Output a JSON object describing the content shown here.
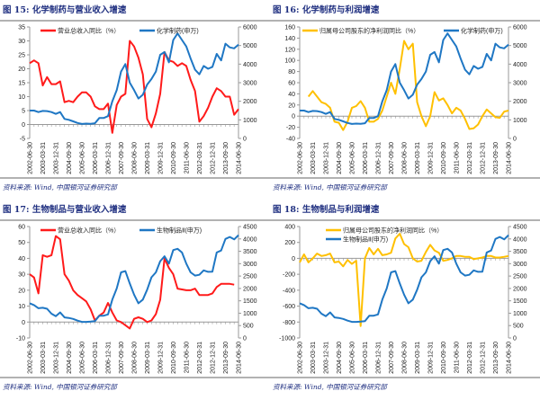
{
  "x_labels": [
    "2002-06-30",
    "2003-03-31",
    "2003-12-31",
    "2004-09-30",
    "2005-06-30",
    "2006-03-31",
    "2006-12-31",
    "2007-09-30",
    "2008-06-30",
    "2009-03-31",
    "2009-12-31",
    "2010-09-30",
    "2011-06-30",
    "2012-03-31",
    "2012-12-31",
    "2013-09-30",
    "2014-06-30"
  ],
  "colors": {
    "red": "#ff1a1a",
    "blue": "#1f77c4",
    "yellow": "#ffc000",
    "title": "#1f2f80"
  },
  "chart_data": [
    {
      "type": "line",
      "title": "图 15:  化学制药与营业收入增速",
      "source": "资料来源:  Wind,  中国银河证券研究部",
      "ylim": [
        -5,
        35
      ],
      "yticks": [
        -5,
        0,
        5,
        10,
        15,
        20,
        25,
        30,
        35
      ],
      "y2lim": [
        0,
        6000
      ],
      "y2ticks": [
        0,
        1000,
        2000,
        3000,
        4000,
        5000,
        6000
      ],
      "legend_layout": "row",
      "series": [
        {
          "name": "营业总收入同比（%）",
          "axis": "left",
          "color": "#ff1a1a",
          "values": [
            22,
            23,
            22,
            14,
            17,
            14.5,
            14.5,
            15.5,
            8,
            8.5,
            8,
            10,
            11.5,
            11.5,
            10,
            6.5,
            5.5,
            5.5,
            7.5,
            -3,
            7,
            10,
            11,
            30,
            28,
            24,
            18,
            2,
            -1,
            4,
            11,
            26,
            23,
            22.5,
            21,
            22,
            21,
            16,
            12,
            1,
            3,
            6,
            10,
            13,
            12,
            10,
            10,
            3.5,
            5.5
          ]
        },
        {
          "name": "化学制药(申万)",
          "axis": "right",
          "color": "#1f77c4",
          "values": [
            1500,
            1500,
            1420,
            1480,
            1470,
            1420,
            1320,
            1420,
            1050,
            1000,
            920,
            830,
            780,
            800,
            790,
            820,
            1100,
            1100,
            1200,
            2000,
            2600,
            3600,
            4000,
            3000,
            2600,
            2150,
            2350,
            2900,
            3200,
            3600,
            4500,
            4650,
            4100,
            5300,
            5650,
            5300,
            4950,
            4300,
            3700,
            3450,
            3900,
            3750,
            3850,
            4550,
            4200,
            5100,
            4900,
            4850,
            5050
          ]
        }
      ]
    },
    {
      "type": "line",
      "title": "图 16:  化学制药与利润增速",
      "source": "资料来源:  Wind,  中国银河证券研究部",
      "ylim": [
        -40,
        160
      ],
      "yticks": [
        -40,
        -20,
        0,
        20,
        40,
        60,
        80,
        100,
        120,
        140,
        160
      ],
      "y2lim": [
        0,
        6000
      ],
      "y2ticks": [
        0,
        1000,
        2000,
        3000,
        4000,
        5000,
        6000
      ],
      "legend_layout": "row-wide",
      "series": [
        {
          "name": "归属母公司股东的净利润同比（%）",
          "axis": "left",
          "color": "#ffc000",
          "values": [
            null,
            null,
            35,
            45,
            35,
            25,
            22,
            15,
            -10,
            -12,
            -25,
            -10,
            15,
            18,
            27,
            15,
            -10,
            -10,
            -5,
            10,
            35,
            60,
            40,
            85,
            135,
            120,
            130,
            25,
            0,
            -18,
            0,
            43,
            28,
            32,
            20,
            5,
            15,
            10,
            -5,
            -23,
            -22,
            -15,
            0,
            12,
            5,
            -2,
            -3,
            8,
            10
          ]
        },
        {
          "name": "化学制药(申万)",
          "axis": "right",
          "color": "#1f77c4",
          "values": [
            1500,
            1500,
            1420,
            1480,
            1470,
            1420,
            1320,
            1420,
            1050,
            1000,
            920,
            830,
            780,
            800,
            790,
            820,
            1100,
            1100,
            1200,
            2000,
            2600,
            3600,
            4000,
            3000,
            2600,
            2150,
            2350,
            2900,
            3200,
            3600,
            4500,
            4650,
            4100,
            5300,
            5650,
            5300,
            4950,
            4300,
            3700,
            3450,
            3900,
            3750,
            3850,
            4550,
            4200,
            5100,
            4900,
            4850,
            5050
          ]
        }
      ]
    },
    {
      "type": "line",
      "title": "图 17:  生物制品与营业收入增速",
      "source": "资料来源:  Wind,  中国银河证券研究部",
      "ylim": [
        -10,
        60
      ],
      "yticks": [
        -10,
        0,
        10,
        20,
        30,
        40,
        50,
        60
      ],
      "y2lim": [
        0,
        4500
      ],
      "y2ticks": [
        0,
        500,
        1000,
        1500,
        2000,
        2500,
        3000,
        3500,
        4000,
        4500
      ],
      "legend_layout": "row",
      "series": [
        {
          "name": "营业总收入同比（%）",
          "axis": "left",
          "color": "#ff1a1a",
          "values": [
            30,
            28,
            18,
            42,
            41,
            42,
            54,
            52,
            30,
            26,
            20,
            17,
            15,
            13,
            8,
            1,
            4,
            6,
            12,
            6,
            1,
            0,
            -2,
            -4,
            2,
            3,
            2,
            0,
            1,
            5,
            14,
            40,
            34,
            30,
            21,
            20.5,
            20,
            20,
            21,
            17,
            17,
            17,
            18,
            22,
            24,
            24,
            24,
            23.5,
            null
          ]
        },
        {
          "name": "生物制品Ⅱ(申万)",
          "axis": "right",
          "color": "#1f77c4",
          "values": [
            1400,
            1330,
            1200,
            1220,
            1180,
            980,
            880,
            1030,
            830,
            810,
            770,
            700,
            650,
            650,
            660,
            680,
            900,
            900,
            950,
            1550,
            2000,
            2650,
            2700,
            2200,
            1750,
            1400,
            1550,
            1950,
            2450,
            2650,
            3100,
            3300,
            3000,
            3550,
            3600,
            3450,
            3000,
            2650,
            2520,
            2550,
            2730,
            2670,
            2680,
            3450,
            3530,
            4000,
            4080,
            3980,
            4150
          ]
        }
      ]
    },
    {
      "type": "line",
      "title": "图 18:  生物制品与利润增速",
      "source": "资料来源:  Wind,  中国银河证券研究部",
      "ylim": [
        -1000,
        400
      ],
      "yticks": [
        -1000,
        -800,
        -600,
        -400,
        -200,
        0,
        200,
        400
      ],
      "y2lim": [
        0,
        4500
      ],
      "y2ticks": [
        0,
        500,
        1000,
        1500,
        2000,
        2500,
        3000,
        3500,
        4000,
        4500
      ],
      "legend_layout": "stack",
      "series": [
        {
          "name": "归属母公司股东的净利润同比（%）",
          "axis": "left",
          "color": "#ffc000",
          "values": [
            -50,
            50,
            -50,
            0,
            60,
            30,
            40,
            60,
            -50,
            -40,
            -100,
            -20,
            -70,
            -30,
            -850,
            0,
            130,
            50,
            120,
            40,
            50,
            70,
            250,
            310,
            180,
            140,
            0,
            -40,
            -30,
            80,
            170,
            100,
            70,
            -30,
            -20,
            0,
            30,
            30,
            20,
            20,
            -10,
            0,
            10,
            30,
            30,
            10,
            10,
            20,
            30
          ]
        },
        {
          "name": "生物制品Ⅱ(申万)",
          "axis": "right",
          "color": "#1f77c4",
          "values": [
            1400,
            1330,
            1200,
            1220,
            1180,
            980,
            880,
            1030,
            830,
            810,
            770,
            700,
            650,
            650,
            660,
            680,
            900,
            900,
            950,
            1550,
            2000,
            2650,
            2700,
            2200,
            1750,
            1400,
            1550,
            1950,
            2450,
            2650,
            3100,
            3300,
            3000,
            3550,
            3600,
            3450,
            3000,
            2650,
            2520,
            2550,
            2730,
            2670,
            2680,
            3450,
            3530,
            4000,
            4080,
            3980,
            4150
          ]
        }
      ]
    }
  ]
}
